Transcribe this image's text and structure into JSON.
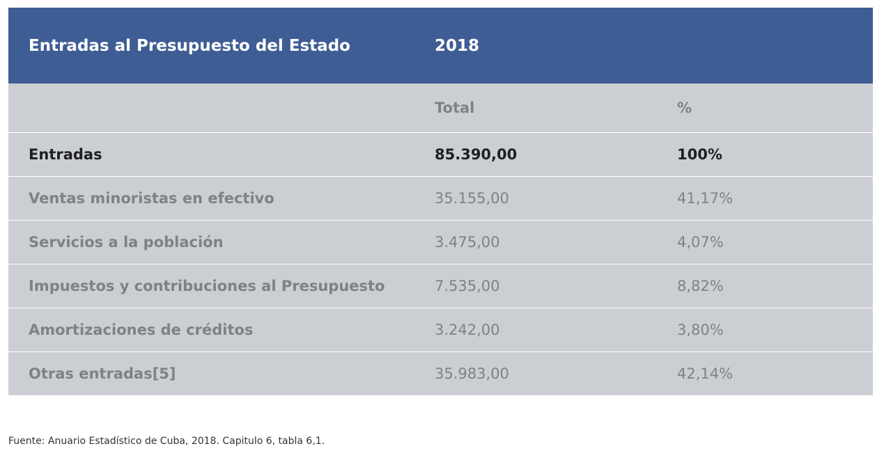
{
  "table": {
    "title": "Entradas al Presupuesto del Estado",
    "year": "2018",
    "col_total": "Total",
    "col_pct": "%",
    "total_row": {
      "label": "Entradas",
      "total": "85.390,00",
      "pct": "100%"
    },
    "rows": [
      {
        "label": "Ventas minoristas en efectivo",
        "total": "35.155,00",
        "pct": "41,17%"
      },
      {
        "label": "Servicios a la población",
        "total": "3.475,00",
        "pct": "4,07%"
      },
      {
        "label": "Impuestos y contribuciones al Presupuesto",
        "total": "7.535,00",
        "pct": "8,82%"
      },
      {
        "label": "Amortizaciones de créditos",
        "total": "3.242,00",
        "pct": "3,80%"
      },
      {
        "label": "Otras entradas[5]",
        "total": "35.983,00",
        "pct": "42,14%"
      }
    ]
  },
  "source": "Fuente: Anuario Estadístico de Cuba, 2018. Capitulo 6, tabla 6,1.",
  "colors": {
    "header_bg": "#3f5d95",
    "body_bg": "#cbcfd4",
    "muted_text": "#7f8185"
  }
}
